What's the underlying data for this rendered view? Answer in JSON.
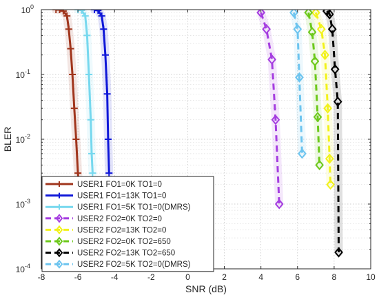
{
  "chart_data": {
    "type": "line",
    "xlabel": "SNR (dB)",
    "ylabel": "BLER",
    "xlim": [
      -8,
      10
    ],
    "ylim": [
      0.0001,
      1
    ],
    "yscale": "log",
    "grid": true,
    "legend_position": "bottom-left",
    "x_tick_labels": [
      "-8",
      "-6",
      "-4",
      "-2",
      "0",
      "2",
      "4",
      "6",
      "8",
      "10"
    ],
    "x_tick_values": [
      -8,
      -6,
      -4,
      -2,
      0,
      2,
      4,
      6,
      8,
      10
    ],
    "y_tick_labels": [
      {
        "base": "10",
        "exp": "-4",
        "value": 0.0001
      },
      {
        "base": "10",
        "exp": "-3",
        "value": 0.001
      },
      {
        "base": "10",
        "exp": "-2",
        "value": 0.01
      },
      {
        "base": "10",
        "exp": "-1",
        "value": 0.1
      },
      {
        "base": "10",
        "exp": "0",
        "value": 1
      }
    ],
    "series": [
      {
        "name": "USER1 FO1=0K TO1=0",
        "color": "#a0351c",
        "dash": "solid",
        "marker": "plus",
        "x": [
          -7.2,
          -7.0,
          -6.8,
          -6.6,
          -6.5,
          -6.4,
          -6.3,
          -6.2,
          -6.1,
          -6.0,
          -5.9
        ],
        "y": [
          1.0,
          1.0,
          0.95,
          0.8,
          0.5,
          0.25,
          0.1,
          0.03,
          0.01,
          0.003,
          0.0013
        ]
      },
      {
        "name": "USER1 FO1=13K TO1=0",
        "color": "#0f17d8",
        "dash": "solid",
        "marker": "plus",
        "x": [
          -5.1,
          -4.9,
          -4.7,
          -4.6,
          -4.5,
          -4.4,
          -4.35,
          -4.3
        ],
        "y": [
          1.0,
          0.97,
          0.8,
          0.5,
          0.2,
          0.05,
          0.01,
          0.003
        ]
      },
      {
        "name": "USER1 FO1=5K TO1=0(DMRS)",
        "color": "#76d8ee",
        "dash": "solid",
        "marker": "plus",
        "x": [
          -6.0,
          -5.8,
          -5.6,
          -5.5,
          -5.4,
          -5.3,
          -5.25,
          -5.2
        ],
        "y": [
          1.0,
          0.98,
          0.8,
          0.4,
          0.1,
          0.02,
          0.006,
          0.003
        ]
      },
      {
        "name": "USER2 FO2=0K TO2=0",
        "color": "#a53de0",
        "dash": "dashed",
        "marker": "diamond",
        "x": [
          4.0,
          4.3,
          4.6,
          4.8,
          5.0
        ],
        "y": [
          0.9,
          0.5,
          0.17,
          0.02,
          0.001
        ]
      },
      {
        "name": "USER2 FO2=13K TO2=0",
        "color": "#f2f21a",
        "dash": "dashed",
        "marker": "diamond",
        "x": [
          7.0,
          7.3,
          7.5,
          7.65,
          7.75,
          7.8
        ],
        "y": [
          0.9,
          0.5,
          0.2,
          0.03,
          0.005,
          0.002
        ]
      },
      {
        "name": "USER2 FO2=0K TO2=650",
        "color": "#6dc91b",
        "dash": "dashed",
        "marker": "diamond",
        "x": [
          6.6,
          6.8,
          6.95,
          7.1,
          7.2
        ],
        "y": [
          0.9,
          0.45,
          0.16,
          0.022,
          0.004
        ]
      },
      {
        "name": "USER2 FO2=13K TO2=650",
        "color": "#000000",
        "dash": "dashed",
        "marker": "diamond",
        "x": [
          7.6,
          7.75,
          7.9,
          8.05,
          8.2,
          8.25
        ],
        "y": [
          0.95,
          0.85,
          0.5,
          0.12,
          0.038,
          0.00018
        ]
      },
      {
        "name": "USER2 FO2=5K TO2=0(DMRS)",
        "color": "#6cc4ef",
        "dash": "dashed",
        "marker": "diamond",
        "x": [
          5.8,
          6.0,
          6.1,
          6.25
        ],
        "y": [
          0.9,
          0.5,
          0.09,
          0.006
        ]
      }
    ]
  }
}
